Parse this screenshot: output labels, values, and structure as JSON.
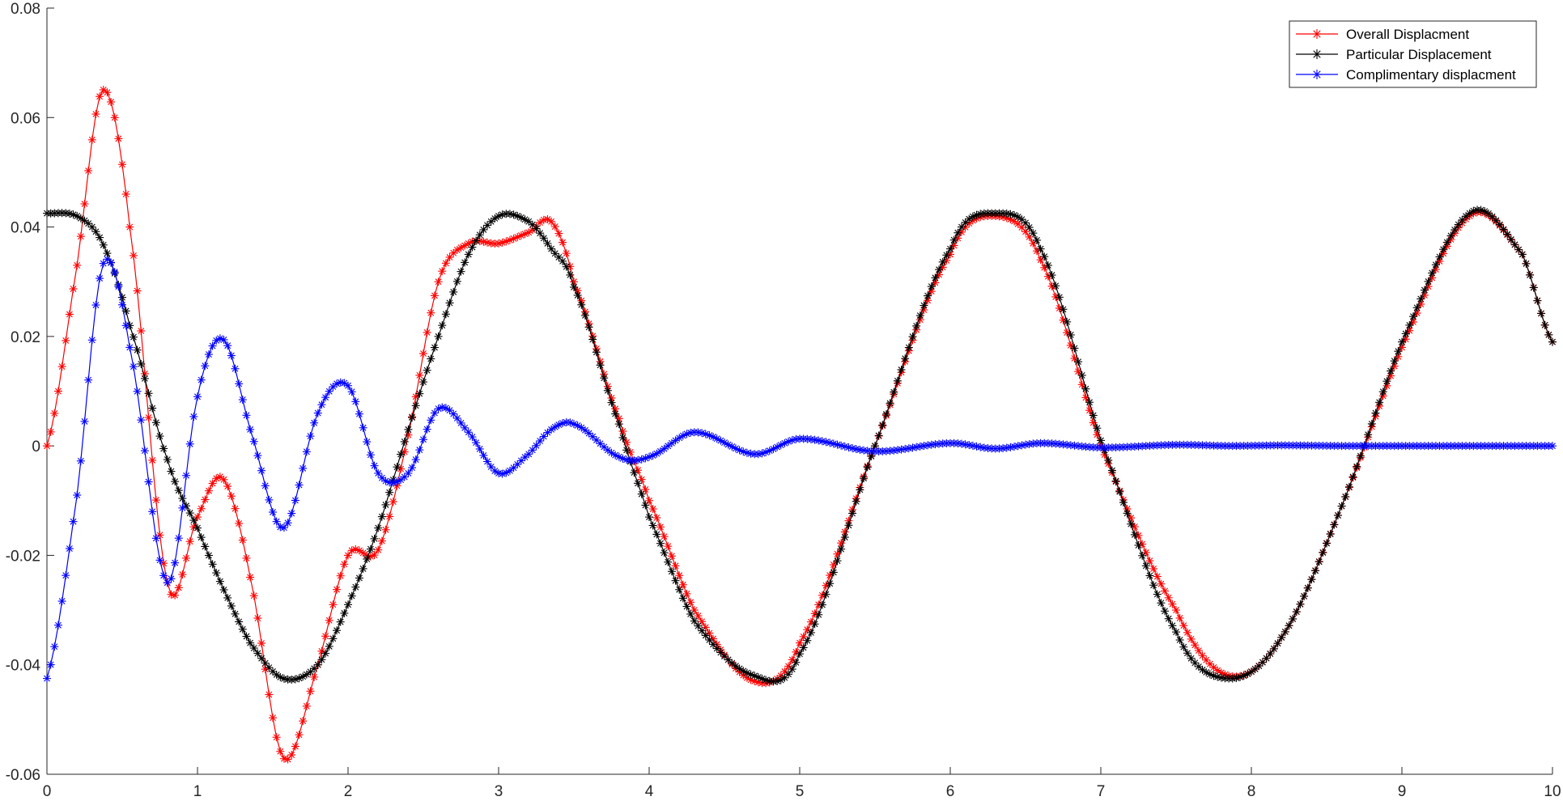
{
  "chart_data": {
    "type": "line",
    "title": "",
    "xlabel": "",
    "ylabel": "",
    "xlim": [
      0,
      10
    ],
    "ylim": [
      -0.06,
      0.08
    ],
    "x_ticks": [
      0,
      1,
      2,
      3,
      4,
      5,
      6,
      7,
      8,
      9,
      10
    ],
    "y_ticks": [
      -0.06,
      -0.04,
      -0.02,
      0,
      0.02,
      0.04,
      0.06,
      0.08
    ],
    "x_tick_labels": [
      "0",
      "1",
      "2",
      "3",
      "4",
      "5",
      "6",
      "7",
      "8",
      "9",
      "10"
    ],
    "y_tick_labels": [
      "-0.06",
      "-0.04",
      "-0.02",
      "0",
      "0.02",
      "0.04",
      "0.06",
      "0.08"
    ],
    "marker": "asterisk",
    "grid": false,
    "legend_position": "top-right",
    "x": [
      0,
      0.2,
      0.37,
      0.55,
      0.8,
      1.0,
      1.17,
      1.35,
      1.57,
      1.8,
      2.0,
      2.2,
      2.4,
      2.6,
      2.8,
      3.0,
      3.2,
      3.35,
      3.5,
      3.8,
      4.0,
      4.3,
      4.7,
      5.0,
      5.5,
      6.0,
      6.3,
      6.6,
      7.0,
      7.5,
      7.85,
      8.2,
      8.6,
      9.0,
      9.45,
      9.8,
      10.0
    ],
    "series": [
      {
        "name": "Overall Displacment",
        "color": "#ff0000",
        "values": [
          0,
          0.033,
          0.065,
          0.04,
          -0.025,
          -0.013,
          -0.006,
          -0.024,
          -0.057,
          -0.04,
          -0.02,
          -0.019,
          0.002,
          0.03,
          0.037,
          0.037,
          0.039,
          0.041,
          0.03,
          0.005,
          -0.01,
          -0.03,
          -0.043,
          -0.036,
          0,
          0.035,
          0.042,
          0.034,
          0,
          -0.03,
          -0.042,
          -0.035,
          -0.011,
          0.018,
          0.042,
          0.035,
          0.019
        ]
      },
      {
        "name": "Particular Displacement",
        "color": "#000000",
        "values": [
          0.0425,
          0.042,
          0.037,
          0.022,
          -0.0025,
          -0.015,
          -0.026,
          -0.036,
          -0.0425,
          -0.04,
          -0.029,
          -0.015,
          0.003,
          0.02,
          0.035,
          0.042,
          0.041,
          0.036,
          0.029,
          0.004,
          -0.013,
          -0.032,
          -0.042,
          -0.038,
          0,
          0.036,
          0.0425,
          0.036,
          0.001,
          -0.034,
          -0.0425,
          -0.035,
          -0.011,
          0.019,
          0.0425,
          0.035,
          0.019
        ]
      },
      {
        "name": "Complimentary displacment",
        "color": "#0000ff",
        "values": [
          -0.0425,
          -0.009,
          0.033,
          0.018,
          -0.025,
          0.009,
          0.0195,
          0.003,
          -0.015,
          0.006,
          0.011,
          -0.005,
          -0.005,
          0.0068,
          0.0025,
          -0.005,
          -0.0015,
          0.003,
          0.004,
          -0.002,
          -0.002,
          0.0025,
          -0.0015,
          0.0013,
          -0.001,
          0.0005,
          -0.0005,
          0.0005,
          -0.0003,
          0.0002,
          0,
          0.0001,
          0,
          0,
          0,
          0,
          0
        ]
      }
    ]
  }
}
